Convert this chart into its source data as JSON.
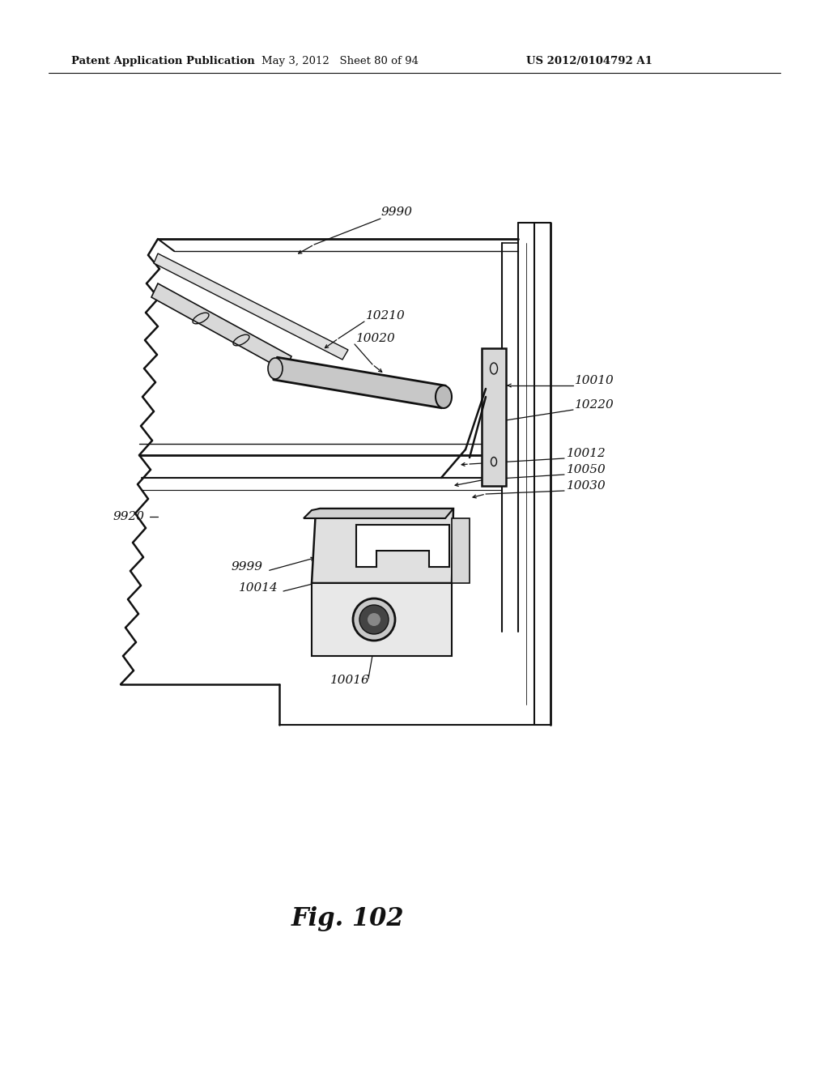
{
  "bg_color": "#ffffff",
  "line_color": "#111111",
  "header_left": "Patent Application Publication",
  "header_mid": "May 3, 2012   Sheet 80 of 94",
  "header_right": "US 2012/0104792 A1",
  "fig_label": "Fig. 102",
  "label_fontsize": 11,
  "fig_label_fontsize": 22,
  "header_fontsize": 9.5
}
